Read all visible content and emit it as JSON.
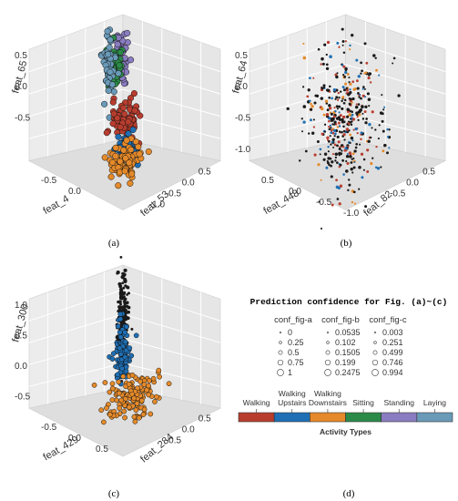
{
  "captions": {
    "a": "(a)",
    "b": "(b)",
    "c": "(c)",
    "d": "(d)"
  },
  "colors": {
    "walking": "#b83d2e",
    "walking_upstairs": "#1f6fb4",
    "walking_downstairs": "#e58a2a",
    "sitting": "#2c8a48",
    "standing": "#8a7cc0",
    "laying": "#6a9ab8",
    "box_wall": "#ececec",
    "grid": "#ffffff"
  },
  "chart_data": [
    {
      "id": "a",
      "type": "scatter",
      "projection": "3d",
      "axes": {
        "x": {
          "label": "feat_4",
          "ticks": [
            "-0.5",
            "0.0"
          ]
        },
        "y": {
          "label": "feat_53",
          "ticks": [
            "0.5",
            "0.0",
            "-0.5",
            "-1.0"
          ]
        },
        "z": {
          "label": "feat_65",
          "ticks": [
            "0.5",
            "0.0",
            "-0.5"
          ]
        }
      },
      "series": [
        {
          "key": "standing",
          "center": [
            -0.55,
            -0.6,
            0.45
          ],
          "spread": [
            0.06,
            0.08,
            0.18
          ],
          "count": 60
        },
        {
          "key": "sitting",
          "center": [
            -0.35,
            -0.55,
            0.42
          ],
          "spread": [
            0.06,
            0.08,
            0.16
          ],
          "count": 55
        },
        {
          "key": "laying",
          "center": [
            -0.1,
            -0.45,
            0.55
          ],
          "spread": [
            0.05,
            0.06,
            0.2
          ],
          "count": 55
        },
        {
          "key": "walking",
          "center": [
            -0.05,
            0.0,
            0.0
          ],
          "spread": [
            0.12,
            0.12,
            0.1
          ],
          "count": 80
        },
        {
          "key": "walking_upstairs",
          "center": [
            0.1,
            0.2,
            -0.25
          ],
          "spread": [
            0.1,
            0.1,
            0.08
          ],
          "count": 55
        },
        {
          "key": "walking_downstairs",
          "center": [
            0.25,
            0.35,
            -0.35
          ],
          "spread": [
            0.14,
            0.12,
            0.1
          ],
          "count": 90
        }
      ]
    },
    {
      "id": "b",
      "type": "scatter",
      "projection": "3d",
      "axes": {
        "x": {
          "label": "feat_448",
          "ticks": [
            "0.5",
            "0.0",
            "-0.5",
            "-1.0"
          ]
        },
        "y": {
          "label": "feat_82",
          "ticks": [
            "0.5",
            "0.0",
            "-0.5"
          ]
        },
        "z": {
          "label": "feat_64",
          "ticks": [
            "0.5",
            "0.0",
            "-0.5",
            "-1.0"
          ]
        }
      },
      "series": [
        {
          "key": "mixed",
          "center": [
            0.0,
            0.0,
            0.0
          ],
          "spread": [
            0.35,
            0.3,
            0.45
          ],
          "count": 420
        }
      ]
    },
    {
      "id": "c",
      "type": "scatter",
      "projection": "3d",
      "axes": {
        "x": {
          "label": "feat_429",
          "ticks": [
            "-0.5",
            "0.0",
            "0.5"
          ]
        },
        "y": {
          "label": "feat_284",
          "ticks": [
            "0.5",
            "0.0",
            "-0.5"
          ]
        },
        "z": {
          "label": "feat_300",
          "ticks": [
            "1.0",
            "0.5",
            "0.0",
            "-0.5"
          ]
        }
      },
      "series": [
        {
          "key": "black",
          "center": [
            0.0,
            0.0,
            0.7
          ],
          "spread": [
            0.05,
            0.05,
            0.35
          ],
          "count": 160
        },
        {
          "key": "walking_upstairs",
          "center": [
            0.02,
            0.0,
            0.25
          ],
          "spread": [
            0.07,
            0.05,
            0.22
          ],
          "count": 120
        },
        {
          "key": "walking_downstairs",
          "center": [
            -0.1,
            0.1,
            -0.4
          ],
          "spread": [
            0.25,
            0.18,
            0.12
          ],
          "count": 140
        }
      ]
    }
  ],
  "legend": {
    "title": "Prediction confidence for Fig. (a)~(c)",
    "columns": [
      {
        "header": "conf_fig-a",
        "values": [
          "0",
          "0.25",
          "0.5",
          "0.75",
          "1"
        ]
      },
      {
        "header": "conf_fig-b",
        "values": [
          "0.0535",
          "0.102",
          "0.1505",
          "0.199",
          "0.2475"
        ]
      },
      {
        "header": "conf_fig-c",
        "values": [
          "0.003",
          "0.251",
          "0.499",
          "0.746",
          "0.994"
        ]
      }
    ]
  },
  "activity_bar": {
    "title": "Activity Types",
    "labels": [
      {
        "line1": "Walking",
        "line2": "",
        "key": "walking"
      },
      {
        "line1": "Walking",
        "line2": "Upstairs",
        "key": "walking_upstairs"
      },
      {
        "line1": "Walking",
        "line2": "Downstairs",
        "key": "walking_downstairs"
      },
      {
        "line1": "Sitting",
        "line2": "",
        "key": "sitting"
      },
      {
        "line1": "Standing",
        "line2": "",
        "key": "standing"
      },
      {
        "line1": "Laying",
        "line2": "",
        "key": "laying"
      }
    ]
  }
}
